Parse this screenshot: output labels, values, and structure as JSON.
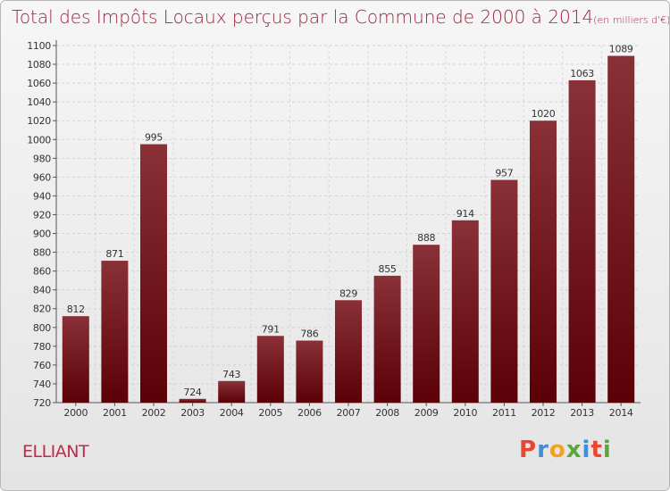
{
  "header": {
    "title": "Total des Impôts Locaux perçus par la Commune de 2000 à 2014",
    "unit": "(en milliers d'€)"
  },
  "footer": {
    "commune": "ELLIANT",
    "logo": [
      "P",
      "r",
      "o",
      "x",
      "i",
      "t",
      "i"
    ],
    "logo_colors": [
      "#e8482f",
      "#3f8fd2",
      "#f2a120",
      "#5aa83c",
      "#3f8fd2",
      "#e8482f",
      "#5aa83c"
    ]
  },
  "chart_data": {
    "type": "bar",
    "title": "Total des Impôts Locaux perçus par la Commune de 2000 à 2014",
    "categories": [
      "2000",
      "2001",
      "2002",
      "2003",
      "2004",
      "2005",
      "2006",
      "2007",
      "2008",
      "2009",
      "2010",
      "2011",
      "2012",
      "2013",
      "2014"
    ],
    "values": [
      812,
      871,
      995,
      724,
      743,
      791,
      786,
      829,
      855,
      888,
      914,
      957,
      1020,
      1063,
      1089
    ],
    "ylim": [
      720,
      1100
    ],
    "yticks": [
      720,
      740,
      760,
      780,
      800,
      820,
      840,
      860,
      880,
      900,
      920,
      940,
      960,
      980,
      1000,
      1020,
      1040,
      1060,
      1080,
      1100
    ],
    "grid": true,
    "bar_color_top": "#8a3138",
    "bar_color_bottom": "#5a0006"
  }
}
